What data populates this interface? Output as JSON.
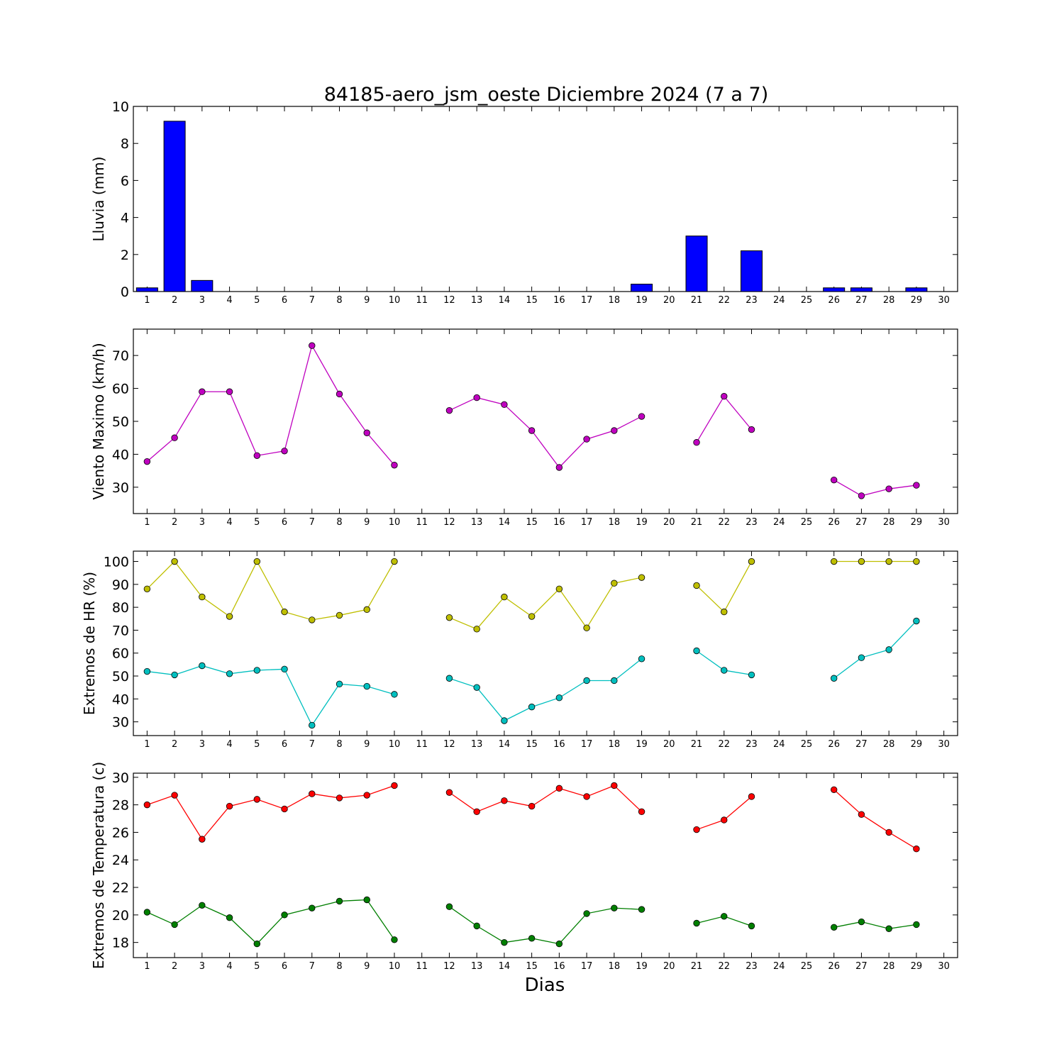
{
  "chart_data": {
    "title": "84185-aero_jsm_oeste Diciembre 2024  (7 a 7)",
    "xlabel": "Dias",
    "x_ticks": [
      "1",
      "2",
      "3",
      "4",
      "5",
      "6",
      "7",
      "8",
      "9",
      "10",
      "11",
      "12",
      "13",
      "14",
      "15",
      "16",
      "17",
      "18",
      "19",
      "20",
      "21",
      "22",
      "23",
      "24",
      "25",
      "26",
      "27",
      "28",
      "29",
      "30"
    ],
    "panels": [
      {
        "type": "bar",
        "ylabel": "Lluvia (mm)",
        "ylim": [
          0,
          10
        ],
        "yticks": [
          0,
          2,
          4,
          6,
          8,
          10
        ],
        "series": [
          {
            "color": "#0000ff",
            "values": [
              0.2,
              9.2,
              0.6,
              0,
              0,
              0,
              0,
              0,
              0,
              0,
              0,
              0,
              0,
              0,
              0,
              0,
              0,
              0,
              0.4,
              null,
              3.0,
              0,
              2.2,
              null,
              null,
              0.2,
              0.2,
              0,
              0.2,
              null
            ]
          }
        ]
      },
      {
        "type": "line",
        "ylabel": "Viento Maximo (km/h)",
        "ylim": [
          22,
          78
        ],
        "yticks": [
          30,
          40,
          50,
          60,
          70
        ],
        "series": [
          {
            "color": "#bf00bf",
            "values": [
              37.8,
              45.0,
              59.0,
              59.0,
              39.6,
              41.0,
              73.0,
              58.3,
              46.5,
              36.7,
              null,
              53.3,
              57.2,
              55.1,
              47.2,
              36.0,
              44.6,
              47.2,
              51.5,
              null,
              43.6,
              57.6,
              47.5,
              null,
              null,
              32.2,
              27.4,
              29.5,
              30.6,
              null
            ]
          }
        ]
      },
      {
        "type": "line",
        "ylabel": "Extremos de HR (%)",
        "ylim": [
          24,
          104.5
        ],
        "yticks": [
          30,
          40,
          50,
          60,
          70,
          80,
          90,
          100
        ],
        "series": [
          {
            "color": "#bfbf00",
            "values": [
              88,
              100,
              84.5,
              76,
              100,
              78,
              74.5,
              76.5,
              79,
              100,
              null,
              75.5,
              70.5,
              84.5,
              76,
              88,
              71,
              90.5,
              93,
              null,
              89.5,
              78,
              100,
              null,
              null,
              100,
              100,
              100,
              100,
              null
            ]
          },
          {
            "color": "#00bfbf",
            "values": [
              52,
              50.5,
              54.5,
              51,
              52.5,
              53,
              28.5,
              46.5,
              45.5,
              42,
              null,
              49,
              45,
              30.5,
              36.5,
              40.5,
              48,
              48,
              57.5,
              null,
              61,
              52.5,
              50.5,
              null,
              null,
              49,
              58,
              61.5,
              74,
              null
            ]
          }
        ]
      },
      {
        "type": "line",
        "ylabel": "Extremos de Temperatura (c)",
        "ylim": [
          16.9,
          30.3
        ],
        "yticks": [
          18,
          20,
          22,
          24,
          26,
          28,
          30
        ],
        "series": [
          {
            "color": "#ff0000",
            "values": [
              28.0,
              28.7,
              25.5,
              27.9,
              28.4,
              27.7,
              28.8,
              28.5,
              28.7,
              29.4,
              null,
              28.9,
              27.5,
              28.3,
              27.9,
              29.2,
              28.6,
              29.4,
              27.5,
              null,
              26.2,
              26.9,
              28.6,
              null,
              null,
              29.1,
              27.3,
              26.0,
              24.8,
              null
            ]
          },
          {
            "color": "#007f00",
            "values": [
              20.2,
              19.3,
              20.7,
              19.8,
              17.9,
              20.0,
              20.5,
              21.0,
              21.1,
              18.2,
              null,
              20.6,
              19.2,
              18.0,
              18.3,
              17.9,
              20.1,
              20.5,
              20.4,
              null,
              19.4,
              19.9,
              19.2,
              null,
              null,
              19.1,
              19.5,
              19.0,
              19.3,
              null
            ]
          }
        ]
      }
    ]
  }
}
